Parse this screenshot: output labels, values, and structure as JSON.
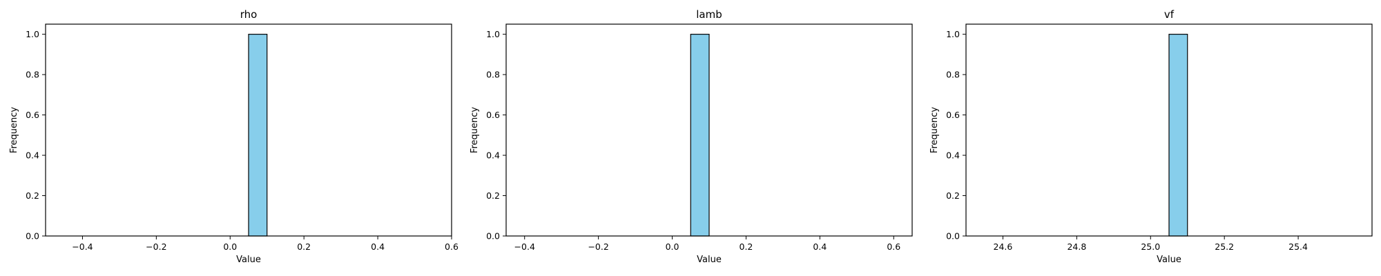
{
  "chart_data": [
    {
      "type": "bar",
      "title": "rho",
      "xlabel": "Value",
      "ylabel": "Frequency",
      "xlim": [
        -0.5,
        0.6
      ],
      "ylim": [
        0,
        1.05
      ],
      "xticks": [
        -0.4,
        -0.2,
        0.0,
        0.2,
        0.4,
        0.6
      ],
      "xtick_labels": [
        "−0.4",
        "−0.2",
        "0.0",
        "0.2",
        "0.4",
        "0.6"
      ],
      "yticks": [
        0.0,
        0.2,
        0.4,
        0.6,
        0.8,
        1.0
      ],
      "ytick_labels": [
        "0.0",
        "0.2",
        "0.4",
        "0.6",
        "0.8",
        "1.0"
      ],
      "bars": [
        {
          "x0": 0.05,
          "x1": 0.1,
          "value": 1
        }
      ],
      "bar_color": "#87CEEB",
      "edge_color": "#000000",
      "grid": false
    },
    {
      "type": "bar",
      "title": "lamb",
      "xlabel": "Value",
      "ylabel": "Frequency",
      "xlim": [
        -0.45,
        0.65
      ],
      "ylim": [
        0,
        1.05
      ],
      "xticks": [
        -0.4,
        -0.2,
        0.0,
        0.2,
        0.4,
        0.6
      ],
      "xtick_labels": [
        "−0.4",
        "−0.2",
        "0.0",
        "0.2",
        "0.4",
        "0.6"
      ],
      "yticks": [
        0.0,
        0.2,
        0.4,
        0.6,
        0.8,
        1.0
      ],
      "ytick_labels": [
        "0.0",
        "0.2",
        "0.4",
        "0.6",
        "0.8",
        "1.0"
      ],
      "bars": [
        {
          "x0": 0.05,
          "x1": 0.1,
          "value": 1
        }
      ],
      "bar_color": "#87CEEB",
      "edge_color": "#000000",
      "grid": false
    },
    {
      "type": "bar",
      "title": "vf",
      "xlabel": "Value",
      "ylabel": "Frequency",
      "xlim": [
        24.5,
        25.6
      ],
      "ylim": [
        0,
        1.05
      ],
      "xticks": [
        24.6,
        24.8,
        25.0,
        25.2,
        25.4
      ],
      "xtick_labels": [
        "24.6",
        "24.8",
        "25.0",
        "25.2",
        "25.4"
      ],
      "yticks": [
        0.0,
        0.2,
        0.4,
        0.6,
        0.8,
        1.0
      ],
      "ytick_labels": [
        "0.0",
        "0.2",
        "0.4",
        "0.6",
        "0.8",
        "1.0"
      ],
      "bars": [
        {
          "x0": 25.05,
          "x1": 25.1,
          "value": 1
        }
      ],
      "bar_color": "#87CEEB",
      "edge_color": "#000000",
      "grid": false
    }
  ]
}
